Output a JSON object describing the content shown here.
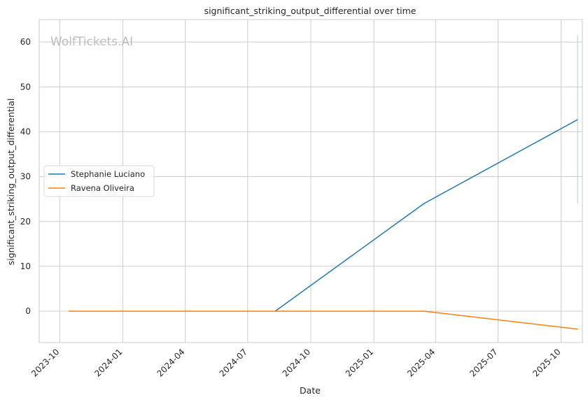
{
  "chart_data": {
    "type": "line",
    "title": "significant_striking_output_differential over time",
    "xlabel": "Date",
    "ylabel": "significant_striking_output_differential",
    "watermark": "WolfTickets.AI",
    "x_ticks": [
      "2023-10",
      "2024-01",
      "2024-04",
      "2024-07",
      "2024-10",
      "2025-01",
      "2025-04",
      "2025-07",
      "2025-10"
    ],
    "y_ticks": [
      0,
      10,
      20,
      30,
      40,
      50,
      60
    ],
    "xlim": [
      "2023-09-01",
      "2025-11-01"
    ],
    "ylim": [
      -7,
      65
    ],
    "grid": true,
    "legend_position": "center-left",
    "series": [
      {
        "name": "Stephanie Luciano",
        "color": "#1f77b4",
        "x": [
          "2024-08-10",
          "2025-03-15",
          "2025-10-25"
        ],
        "y": [
          0,
          24,
          42.7
        ]
      },
      {
        "name": "Ravena Oliveira",
        "color": "#ff7f0e",
        "x": [
          "2023-10-14",
          "2024-08-10",
          "2025-03-15",
          "2025-10-25"
        ],
        "y": [
          0,
          0,
          0,
          -4
        ]
      }
    ],
    "error_bar": {
      "color": "#a8d5c8",
      "x": "2025-10-25",
      "y_low": 24,
      "y_high": 61.5
    }
  }
}
